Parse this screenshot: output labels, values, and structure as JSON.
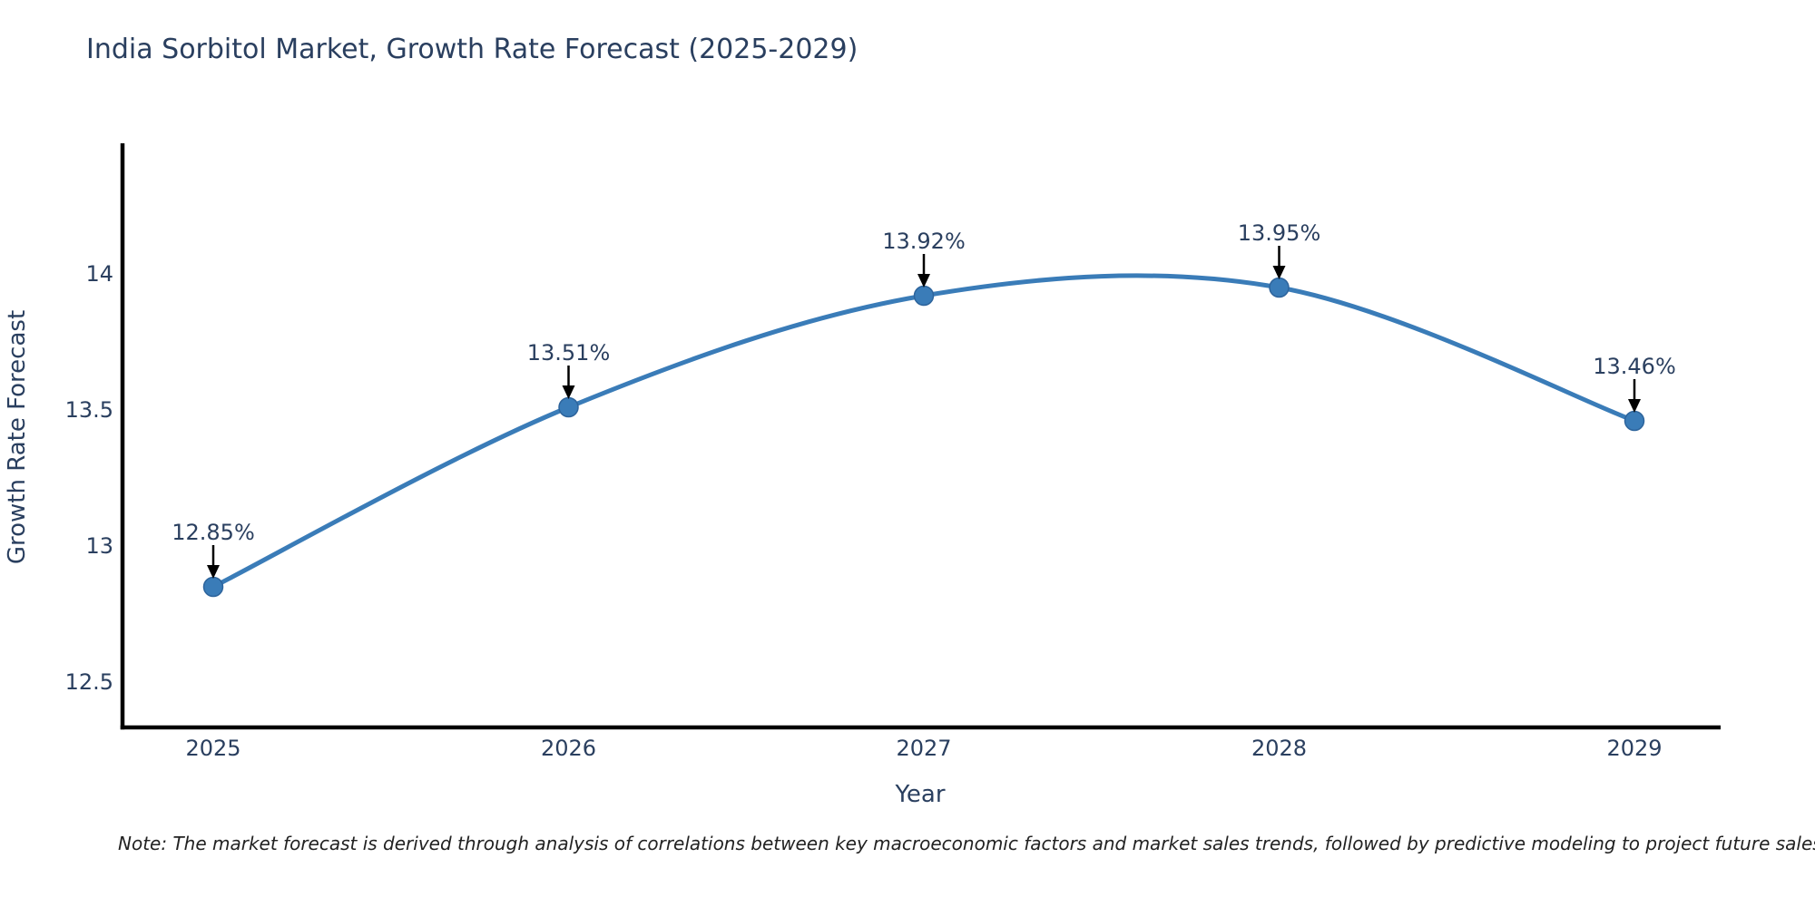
{
  "title": "India Sorbitol Market, Growth Rate Forecast (2025-2029)",
  "note": "Note: The market forecast is derived through analysis of correlations between key macroeconomic factors and market sales trends, followed by predictive modeling to project future sales",
  "chart_data": {
    "type": "line",
    "title": "India Sorbitol Market, Growth Rate Forecast (2025-2029)",
    "categories": [
      "2025",
      "2026",
      "2027",
      "2028",
      "2029"
    ],
    "series": [
      {
        "name": "Growth Rate Forecast",
        "values": [
          12.85,
          13.51,
          13.92,
          13.95,
          13.46
        ]
      }
    ],
    "point_labels": [
      "12.85%",
      "13.51%",
      "13.92%",
      "13.95%",
      "13.46%"
    ],
    "xlabel": "Year",
    "ylabel": "Growth Rate Forecast",
    "ytick_labels": [
      "12.5",
      "13",
      "13.5",
      "14"
    ],
    "ytick_values": [
      12.5,
      13.0,
      13.5,
      14.0
    ],
    "ylim": [
      12.33,
      14.47
    ],
    "line_shape": "spline",
    "grid": false,
    "legend_position": "none",
    "colors": {
      "line": "#3a7cb8",
      "marker": "#3a7cb8",
      "marker_edge": "#2d649c",
      "axis": "#000000",
      "text": "#2a3f5f",
      "arrow": "#000000",
      "note_text": "#222222"
    }
  }
}
